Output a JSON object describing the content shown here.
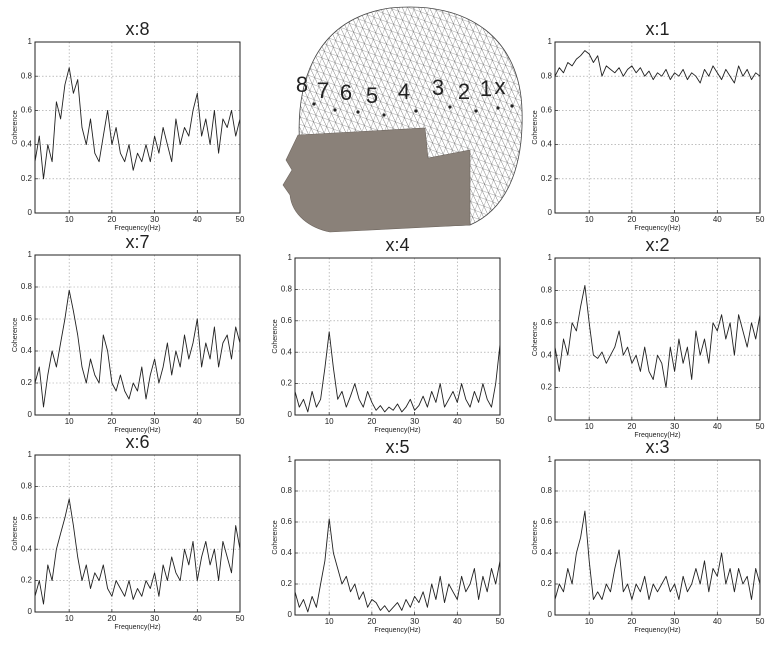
{
  "chart_data": [
    {
      "type": "line",
      "title": "x:8",
      "xlabel": "Frequency(Hz)",
      "ylabel": "Coherence",
      "color": "#222222",
      "grid": true,
      "xlim": [
        2,
        50
      ],
      "ylim": [
        0,
        1
      ],
      "xticks": [
        10,
        20,
        30,
        40,
        50
      ],
      "yticks": [
        0,
        0.2,
        0.4,
        0.6,
        0.8,
        1
      ],
      "x": [
        2,
        3,
        4,
        5,
        6,
        7,
        8,
        9,
        10,
        11,
        12,
        13,
        14,
        15,
        16,
        17,
        18,
        19,
        20,
        21,
        22,
        23,
        24,
        25,
        26,
        27,
        28,
        29,
        30,
        31,
        32,
        33,
        34,
        35,
        36,
        37,
        38,
        39,
        40,
        41,
        42,
        43,
        44,
        45,
        46,
        47,
        48,
        49,
        50
      ],
      "values": [
        0.3,
        0.45,
        0.2,
        0.4,
        0.3,
        0.65,
        0.55,
        0.75,
        0.85,
        0.7,
        0.78,
        0.5,
        0.4,
        0.55,
        0.35,
        0.3,
        0.45,
        0.6,
        0.4,
        0.5,
        0.35,
        0.3,
        0.4,
        0.25,
        0.35,
        0.3,
        0.4,
        0.3,
        0.45,
        0.35,
        0.5,
        0.4,
        0.3,
        0.55,
        0.4,
        0.5,
        0.45,
        0.6,
        0.7,
        0.45,
        0.55,
        0.4,
        0.6,
        0.35,
        0.55,
        0.5,
        0.6,
        0.45,
        0.55
      ]
    },
    {
      "type": "line",
      "title": "x:1",
      "xlabel": "Frequency(Hz)",
      "ylabel": "Coherence",
      "color": "#222222",
      "grid": true,
      "xlim": [
        2,
        50
      ],
      "ylim": [
        0,
        1
      ],
      "xticks": [
        10,
        20,
        30,
        40,
        50
      ],
      "yticks": [
        0,
        0.2,
        0.4,
        0.6,
        0.8,
        1
      ],
      "x": [
        2,
        3,
        4,
        5,
        6,
        7,
        8,
        9,
        10,
        11,
        12,
        13,
        14,
        15,
        16,
        17,
        18,
        19,
        20,
        21,
        22,
        23,
        24,
        25,
        26,
        27,
        28,
        29,
        30,
        31,
        32,
        33,
        34,
        35,
        36,
        37,
        38,
        39,
        40,
        41,
        42,
        43,
        44,
        45,
        46,
        47,
        48,
        49,
        50
      ],
      "values": [
        0.8,
        0.85,
        0.82,
        0.88,
        0.86,
        0.9,
        0.92,
        0.95,
        0.93,
        0.88,
        0.92,
        0.8,
        0.86,
        0.84,
        0.82,
        0.85,
        0.8,
        0.84,
        0.86,
        0.82,
        0.85,
        0.8,
        0.83,
        0.78,
        0.82,
        0.8,
        0.84,
        0.78,
        0.82,
        0.8,
        0.84,
        0.78,
        0.82,
        0.8,
        0.76,
        0.84,
        0.8,
        0.86,
        0.82,
        0.78,
        0.84,
        0.8,
        0.76,
        0.86,
        0.8,
        0.84,
        0.78,
        0.82,
        0.8
      ]
    },
    {
      "type": "line",
      "title": "x:7",
      "xlabel": "Frequency(Hz)",
      "ylabel": "Coherence",
      "color": "#222222",
      "grid": true,
      "xlim": [
        2,
        50
      ],
      "ylim": [
        0,
        1
      ],
      "xticks": [
        10,
        20,
        30,
        40,
        50
      ],
      "yticks": [
        0,
        0.2,
        0.4,
        0.6,
        0.8,
        1
      ],
      "x": [
        2,
        3,
        4,
        5,
        6,
        7,
        8,
        9,
        10,
        11,
        12,
        13,
        14,
        15,
        16,
        17,
        18,
        19,
        20,
        21,
        22,
        23,
        24,
        25,
        26,
        27,
        28,
        29,
        30,
        31,
        32,
        33,
        34,
        35,
        36,
        37,
        38,
        39,
        40,
        41,
        42,
        43,
        44,
        45,
        46,
        47,
        48,
        49,
        50
      ],
      "values": [
        0.2,
        0.3,
        0.05,
        0.25,
        0.4,
        0.3,
        0.45,
        0.6,
        0.78,
        0.65,
        0.5,
        0.3,
        0.2,
        0.35,
        0.25,
        0.2,
        0.5,
        0.4,
        0.2,
        0.15,
        0.25,
        0.15,
        0.1,
        0.2,
        0.15,
        0.3,
        0.1,
        0.25,
        0.35,
        0.2,
        0.3,
        0.45,
        0.25,
        0.4,
        0.3,
        0.5,
        0.35,
        0.45,
        0.6,
        0.3,
        0.45,
        0.35,
        0.55,
        0.3,
        0.45,
        0.5,
        0.35,
        0.55,
        0.45
      ]
    },
    {
      "type": "line",
      "title": "x:4",
      "xlabel": "Frequency(Hz)",
      "ylabel": "Coherence",
      "color": "#222222",
      "grid": true,
      "xlim": [
        2,
        50
      ],
      "ylim": [
        0,
        1
      ],
      "xticks": [
        10,
        20,
        30,
        40,
        50
      ],
      "yticks": [
        0,
        0.2,
        0.4,
        0.6,
        0.8,
        1
      ],
      "x": [
        2,
        3,
        4,
        5,
        6,
        7,
        8,
        9,
        10,
        11,
        12,
        13,
        14,
        15,
        16,
        17,
        18,
        19,
        20,
        21,
        22,
        23,
        24,
        25,
        26,
        27,
        28,
        29,
        30,
        31,
        32,
        33,
        34,
        35,
        36,
        37,
        38,
        39,
        40,
        41,
        42,
        43,
        44,
        45,
        46,
        47,
        48,
        49,
        50
      ],
      "values": [
        0.15,
        0.05,
        0.1,
        0.02,
        0.15,
        0.05,
        0.1,
        0.3,
        0.53,
        0.3,
        0.1,
        0.15,
        0.05,
        0.12,
        0.2,
        0.1,
        0.05,
        0.15,
        0.08,
        0.03,
        0.06,
        0.02,
        0.05,
        0.03,
        0.07,
        0.02,
        0.05,
        0.1,
        0.03,
        0.06,
        0.12,
        0.05,
        0.15,
        0.08,
        0.2,
        0.05,
        0.1,
        0.15,
        0.08,
        0.2,
        0.1,
        0.05,
        0.15,
        0.08,
        0.2,
        0.1,
        0.05,
        0.2,
        0.45
      ]
    },
    {
      "type": "line",
      "title": "x:2",
      "xlabel": "Frequency(Hz)",
      "ylabel": "Coherence",
      "color": "#222222",
      "grid": true,
      "xlim": [
        2,
        50
      ],
      "ylim": [
        0,
        1
      ],
      "xticks": [
        10,
        20,
        30,
        40,
        50
      ],
      "yticks": [
        0,
        0.2,
        0.4,
        0.6,
        0.8,
        1
      ],
      "x": [
        2,
        3,
        4,
        5,
        6,
        7,
        8,
        9,
        10,
        11,
        12,
        13,
        14,
        15,
        16,
        17,
        18,
        19,
        20,
        21,
        22,
        23,
        24,
        25,
        26,
        27,
        28,
        29,
        30,
        31,
        32,
        33,
        34,
        35,
        36,
        37,
        38,
        39,
        40,
        41,
        42,
        43,
        44,
        45,
        46,
        47,
        48,
        49,
        50
      ],
      "values": [
        0.45,
        0.3,
        0.5,
        0.4,
        0.6,
        0.55,
        0.7,
        0.83,
        0.6,
        0.4,
        0.38,
        0.42,
        0.35,
        0.4,
        0.45,
        0.55,
        0.4,
        0.45,
        0.35,
        0.4,
        0.3,
        0.45,
        0.3,
        0.25,
        0.4,
        0.35,
        0.2,
        0.45,
        0.3,
        0.5,
        0.35,
        0.45,
        0.25,
        0.55,
        0.4,
        0.5,
        0.35,
        0.6,
        0.55,
        0.65,
        0.5,
        0.6,
        0.4,
        0.65,
        0.55,
        0.45,
        0.6,
        0.5,
        0.65
      ]
    },
    {
      "type": "line",
      "title": "x:6",
      "xlabel": "Frequency(Hz)",
      "ylabel": "Coherence",
      "color": "#222222",
      "grid": true,
      "xlim": [
        2,
        50
      ],
      "ylim": [
        0,
        1
      ],
      "xticks": [
        10,
        20,
        30,
        40,
        50
      ],
      "yticks": [
        0,
        0.2,
        0.4,
        0.6,
        0.8,
        1
      ],
      "x": [
        2,
        3,
        4,
        5,
        6,
        7,
        8,
        9,
        10,
        11,
        12,
        13,
        14,
        15,
        16,
        17,
        18,
        19,
        20,
        21,
        22,
        23,
        24,
        25,
        26,
        27,
        28,
        29,
        30,
        31,
        32,
        33,
        34,
        35,
        36,
        37,
        38,
        39,
        40,
        41,
        42,
        43,
        44,
        45,
        46,
        47,
        48,
        49,
        50
      ],
      "values": [
        0.1,
        0.2,
        0.05,
        0.3,
        0.2,
        0.4,
        0.5,
        0.6,
        0.72,
        0.55,
        0.35,
        0.2,
        0.3,
        0.15,
        0.25,
        0.2,
        0.3,
        0.15,
        0.1,
        0.2,
        0.15,
        0.1,
        0.2,
        0.08,
        0.15,
        0.1,
        0.2,
        0.15,
        0.25,
        0.1,
        0.3,
        0.2,
        0.35,
        0.25,
        0.2,
        0.4,
        0.3,
        0.45,
        0.2,
        0.35,
        0.45,
        0.3,
        0.4,
        0.2,
        0.45,
        0.35,
        0.25,
        0.55,
        0.4
      ]
    },
    {
      "type": "line",
      "title": "x:5",
      "xlabel": "Frequency(Hz)",
      "ylabel": "Coherence",
      "color": "#222222",
      "grid": true,
      "xlim": [
        2,
        50
      ],
      "ylim": [
        0,
        1
      ],
      "xticks": [
        10,
        20,
        30,
        40,
        50
      ],
      "yticks": [
        0,
        0.2,
        0.4,
        0.6,
        0.8,
        1
      ],
      "x": [
        2,
        3,
        4,
        5,
        6,
        7,
        8,
        9,
        10,
        11,
        12,
        13,
        14,
        15,
        16,
        17,
        18,
        19,
        20,
        21,
        22,
        23,
        24,
        25,
        26,
        27,
        28,
        29,
        30,
        31,
        32,
        33,
        34,
        35,
        36,
        37,
        38,
        39,
        40,
        41,
        42,
        43,
        44,
        45,
        46,
        47,
        48,
        49,
        50
      ],
      "values": [
        0.15,
        0.05,
        0.1,
        0.02,
        0.12,
        0.05,
        0.2,
        0.35,
        0.62,
        0.4,
        0.3,
        0.2,
        0.25,
        0.15,
        0.2,
        0.1,
        0.15,
        0.05,
        0.1,
        0.08,
        0.03,
        0.06,
        0.02,
        0.05,
        0.08,
        0.03,
        0.1,
        0.05,
        0.12,
        0.08,
        0.15,
        0.05,
        0.2,
        0.1,
        0.25,
        0.08,
        0.2,
        0.15,
        0.1,
        0.25,
        0.15,
        0.2,
        0.3,
        0.1,
        0.25,
        0.15,
        0.3,
        0.2,
        0.35
      ]
    },
    {
      "type": "line",
      "title": "x:3",
      "xlabel": "Frequency(Hz)",
      "ylabel": "Coherence",
      "color": "#222222",
      "grid": true,
      "xlim": [
        2,
        50
      ],
      "ylim": [
        0,
        1
      ],
      "xticks": [
        10,
        20,
        30,
        40,
        50
      ],
      "yticks": [
        0,
        0.2,
        0.4,
        0.6,
        0.8,
        1
      ],
      "x": [
        2,
        3,
        4,
        5,
        6,
        7,
        8,
        9,
        10,
        11,
        12,
        13,
        14,
        15,
        16,
        17,
        18,
        19,
        20,
        21,
        22,
        23,
        24,
        25,
        26,
        27,
        28,
        29,
        30,
        31,
        32,
        33,
        34,
        35,
        36,
        37,
        38,
        39,
        40,
        41,
        42,
        43,
        44,
        45,
        46,
        47,
        48,
        49,
        50
      ],
      "values": [
        0.1,
        0.2,
        0.15,
        0.3,
        0.2,
        0.4,
        0.5,
        0.67,
        0.35,
        0.1,
        0.15,
        0.1,
        0.2,
        0.15,
        0.3,
        0.42,
        0.15,
        0.2,
        0.1,
        0.2,
        0.15,
        0.25,
        0.1,
        0.2,
        0.15,
        0.2,
        0.25,
        0.15,
        0.2,
        0.1,
        0.25,
        0.15,
        0.2,
        0.3,
        0.2,
        0.35,
        0.15,
        0.3,
        0.25,
        0.4,
        0.2,
        0.3,
        0.15,
        0.3,
        0.2,
        0.25,
        0.1,
        0.3,
        0.2
      ]
    }
  ],
  "head_figure": {
    "electrode_labels": [
      "8",
      "7",
      "6",
      "5",
      "4",
      "3",
      "2",
      "1",
      "x"
    ]
  }
}
